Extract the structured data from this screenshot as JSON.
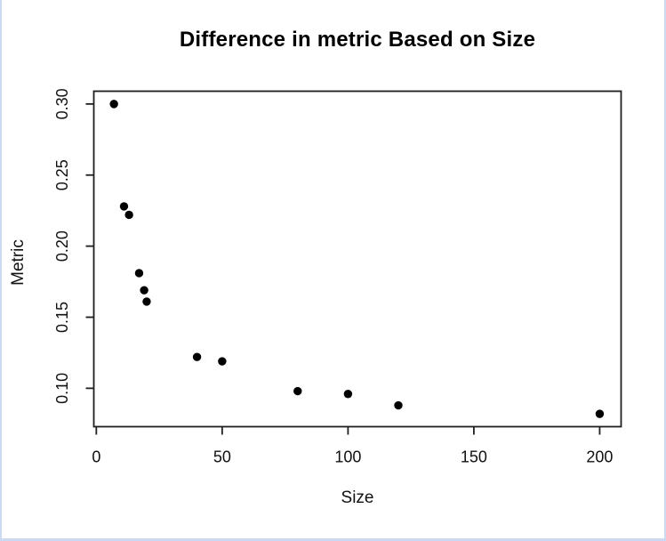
{
  "window": {
    "background": "#ffffff",
    "border_color": "#cbd9f1"
  },
  "chart_data": {
    "type": "scatter",
    "title": "Difference in metric Based on Size",
    "xlabel": "Size",
    "ylabel": "Metric",
    "grid": false,
    "legend_position": "none",
    "point_color": "#000000",
    "axis_color": "#1f1f1f",
    "text_color": "#111111",
    "xlim": [
      -1,
      208.5
    ],
    "ylim": [
      0.073,
      0.309
    ],
    "x_ticks": [
      {
        "v": 0,
        "label": "0"
      },
      {
        "v": 50,
        "label": "50"
      },
      {
        "v": 100,
        "label": "100"
      },
      {
        "v": 150,
        "label": "150"
      },
      {
        "v": 200,
        "label": "200"
      }
    ],
    "y_ticks": [
      {
        "v": 0.1,
        "label": "0.10"
      },
      {
        "v": 0.15,
        "label": "0.15"
      },
      {
        "v": 0.2,
        "label": "0.20"
      },
      {
        "v": 0.25,
        "label": "0.25"
      },
      {
        "v": 0.3,
        "label": "0.30"
      }
    ],
    "points": [
      {
        "x": 7,
        "y": 0.3
      },
      {
        "x": 11,
        "y": 0.228
      },
      {
        "x": 13,
        "y": 0.222
      },
      {
        "x": 17,
        "y": 0.181
      },
      {
        "x": 19,
        "y": 0.169
      },
      {
        "x": 20,
        "y": 0.161
      },
      {
        "x": 40,
        "y": 0.122
      },
      {
        "x": 50,
        "y": 0.119
      },
      {
        "x": 80,
        "y": 0.098
      },
      {
        "x": 100,
        "y": 0.096
      },
      {
        "x": 120,
        "y": 0.088
      },
      {
        "x": 200,
        "y": 0.082
      }
    ]
  }
}
